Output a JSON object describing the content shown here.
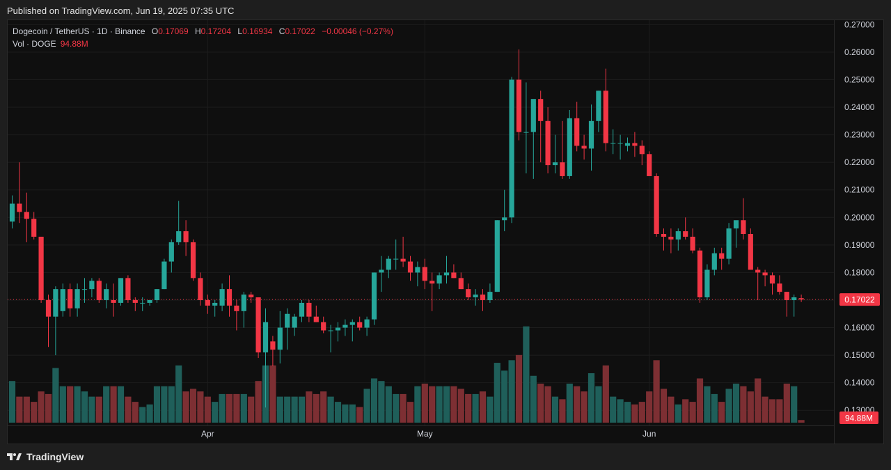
{
  "header": {
    "published": "Published on TradingView.com, Jun 19, 2025 07:35 UTC"
  },
  "legend": {
    "symbol": "Dogecoin / TetherUS · 1D · Binance",
    "o_label": "O",
    "o": "0.17069",
    "h_label": "H",
    "h": "0.17204",
    "l_label": "L",
    "l": "0.16934",
    "c_label": "C",
    "c": "0.17022",
    "change": "−0.00046 (−0.27%)",
    "vol_label": "Vol · DOGE",
    "vol": "94.88M"
  },
  "footer": {
    "brand": "TradingView",
    "logo_icon": "tradingview-logo-icon"
  },
  "colors": {
    "up": "#26a69a",
    "down": "#f23645",
    "grid": "#1c1c1c",
    "bg": "#0f0f0f"
  },
  "chart_data": {
    "type": "candlestick",
    "y_axis_ticks": [
      "0.27000",
      "0.26000",
      "0.25000",
      "0.24000",
      "0.23000",
      "0.22000",
      "0.21000",
      "0.20000",
      "0.19000",
      "0.18000",
      "0.17000",
      "0.16000",
      "0.15000",
      "0.14000",
      "0.13000"
    ],
    "ylim": [
      0.1245,
      0.2716
    ],
    "x_axis_labels": [
      {
        "label": "Apr",
        "index": 27
      },
      {
        "label": "May",
        "index": 57
      },
      {
        "label": "Jun",
        "index": 88
      }
    ],
    "last_price_label": "0.17022",
    "last_price": 0.17022,
    "volume_label": "94.88M",
    "volume_max": 38,
    "candles": [
      [
        0.1985,
        0.208,
        0.196,
        0.205,
        16
      ],
      [
        0.205,
        0.22,
        0.198,
        0.202,
        10
      ],
      [
        0.202,
        0.209,
        0.191,
        0.1995,
        10
      ],
      [
        0.1995,
        0.202,
        0.192,
        0.193,
        8
      ],
      [
        0.193,
        0.193,
        0.169,
        0.17,
        12
      ],
      [
        0.17,
        0.172,
        0.153,
        0.164,
        11
      ],
      [
        0.164,
        0.175,
        0.15,
        0.174,
        21
      ],
      [
        0.166,
        0.176,
        0.164,
        0.174,
        14
      ],
      [
        0.174,
        0.176,
        0.164,
        0.167,
        14
      ],
      [
        0.167,
        0.176,
        0.164,
        0.174,
        14
      ],
      [
        0.174,
        0.178,
        0.169,
        0.174,
        12
      ],
      [
        0.174,
        0.178,
        0.171,
        0.177,
        10
      ],
      [
        0.177,
        0.178,
        0.169,
        0.17,
        10
      ],
      [
        0.17,
        0.176,
        0.167,
        0.174,
        14
      ],
      [
        0.17,
        0.176,
        0.164,
        0.169,
        14
      ],
      [
        0.169,
        0.178,
        0.168,
        0.178,
        14
      ],
      [
        0.178,
        0.179,
        0.169,
        0.17,
        10
      ],
      [
        0.17,
        0.171,
        0.166,
        0.169,
        8
      ],
      [
        0.169,
        0.171,
        0.166,
        0.169,
        6
      ],
      [
        0.169,
        0.17,
        0.168,
        0.17,
        7
      ],
      [
        0.17,
        0.174,
        0.169,
        0.174,
        14
      ],
      [
        0.174,
        0.185,
        0.174,
        0.184,
        14
      ],
      [
        0.184,
        0.192,
        0.18,
        0.191,
        14
      ],
      [
        0.191,
        0.206,
        0.19,
        0.195,
        22
      ],
      [
        0.195,
        0.199,
        0.186,
        0.191,
        12
      ],
      [
        0.191,
        0.192,
        0.177,
        0.178,
        13
      ],
      [
        0.178,
        0.18,
        0.168,
        0.17,
        12
      ],
      [
        0.17,
        0.172,
        0.165,
        0.168,
        10
      ],
      [
        0.168,
        0.17,
        0.164,
        0.169,
        8
      ],
      [
        0.168,
        0.176,
        0.166,
        0.174,
        11
      ],
      [
        0.174,
        0.179,
        0.164,
        0.168,
        11
      ],
      [
        0.168,
        0.17,
        0.159,
        0.166,
        11
      ],
      [
        0.166,
        0.173,
        0.16,
        0.172,
        11
      ],
      [
        0.172,
        0.173,
        0.169,
        0.171,
        10
      ],
      [
        0.171,
        0.171,
        0.149,
        0.151,
        16
      ],
      [
        0.151,
        0.167,
        0.131,
        0.162,
        22
      ],
      [
        0.155,
        0.157,
        0.146,
        0.152,
        22
      ],
      [
        0.152,
        0.166,
        0.147,
        0.16,
        10
      ],
      [
        0.16,
        0.167,
        0.152,
        0.165,
        10
      ],
      [
        0.16,
        0.165,
        0.157,
        0.164,
        10
      ],
      [
        0.164,
        0.17,
        0.162,
        0.169,
        10
      ],
      [
        0.169,
        0.17,
        0.162,
        0.164,
        12
      ],
      [
        0.164,
        0.168,
        0.162,
        0.162,
        11
      ],
      [
        0.162,
        0.164,
        0.158,
        0.159,
        12
      ],
      [
        0.159,
        0.161,
        0.151,
        0.159,
        10
      ],
      [
        0.159,
        0.162,
        0.155,
        0.16,
        8
      ],
      [
        0.16,
        0.163,
        0.157,
        0.161,
        7
      ],
      [
        0.161,
        0.163,
        0.155,
        0.162,
        7
      ],
      [
        0.162,
        0.164,
        0.159,
        0.16,
        6
      ],
      [
        0.16,
        0.164,
        0.157,
        0.163,
        13
      ],
      [
        0.163,
        0.18,
        0.161,
        0.18,
        17
      ],
      [
        0.18,
        0.186,
        0.173,
        0.181,
        16
      ],
      [
        0.181,
        0.186,
        0.178,
        0.185,
        14
      ],
      [
        0.185,
        0.192,
        0.181,
        0.185,
        11
      ],
      [
        0.185,
        0.193,
        0.182,
        0.184,
        11
      ],
      [
        0.184,
        0.186,
        0.177,
        0.18,
        8
      ],
      [
        0.18,
        0.184,
        0.175,
        0.182,
        14
      ],
      [
        0.182,
        0.185,
        0.174,
        0.177,
        15
      ],
      [
        0.177,
        0.18,
        0.166,
        0.176,
        14
      ],
      [
        0.176,
        0.18,
        0.174,
        0.179,
        14
      ],
      [
        0.179,
        0.186,
        0.176,
        0.18,
        14
      ],
      [
        0.18,
        0.183,
        0.178,
        0.178,
        14
      ],
      [
        0.178,
        0.18,
        0.174,
        0.174,
        13
      ],
      [
        0.174,
        0.176,
        0.17,
        0.171,
        11
      ],
      [
        0.171,
        0.174,
        0.168,
        0.172,
        11
      ],
      [
        0.172,
        0.174,
        0.166,
        0.17,
        12
      ],
      [
        0.17,
        0.176,
        0.169,
        0.173,
        10
      ],
      [
        0.173,
        0.199,
        0.173,
        0.199,
        23
      ],
      [
        0.199,
        0.21,
        0.195,
        0.2,
        20
      ],
      [
        0.2,
        0.251,
        0.198,
        0.25,
        24
      ],
      [
        0.25,
        0.261,
        0.228,
        0.231,
        26
      ],
      [
        0.231,
        0.249,
        0.216,
        0.231,
        37
      ],
      [
        0.231,
        0.242,
        0.214,
        0.243,
        18
      ],
      [
        0.243,
        0.246,
        0.22,
        0.235,
        15
      ],
      [
        0.235,
        0.24,
        0.216,
        0.219,
        14
      ],
      [
        0.219,
        0.23,
        0.216,
        0.22,
        10
      ],
      [
        0.22,
        0.235,
        0.214,
        0.215,
        9
      ],
      [
        0.215,
        0.239,
        0.214,
        0.236,
        15
      ],
      [
        0.236,
        0.242,
        0.224,
        0.226,
        14
      ],
      [
        0.226,
        0.23,
        0.221,
        0.225,
        12
      ],
      [
        0.225,
        0.241,
        0.217,
        0.235,
        19
      ],
      [
        0.235,
        0.246,
        0.231,
        0.246,
        14
      ],
      [
        0.246,
        0.254,
        0.224,
        0.227,
        22
      ],
      [
        0.227,
        0.232,
        0.223,
        0.227,
        10
      ],
      [
        0.227,
        0.23,
        0.221,
        0.227,
        9
      ],
      [
        0.226,
        0.229,
        0.224,
        0.227,
        8
      ],
      [
        0.227,
        0.231,
        0.222,
        0.226,
        7
      ],
      [
        0.226,
        0.228,
        0.219,
        0.223,
        8
      ],
      [
        0.223,
        0.224,
        0.215,
        0.215,
        12
      ],
      [
        0.215,
        0.216,
        0.193,
        0.194,
        24
      ],
      [
        0.194,
        0.196,
        0.188,
        0.193,
        13
      ],
      [
        0.193,
        0.196,
        0.187,
        0.192,
        10
      ],
      [
        0.192,
        0.196,
        0.188,
        0.195,
        7
      ],
      [
        0.195,
        0.2,
        0.192,
        0.193,
        9
      ],
      [
        0.193,
        0.196,
        0.187,
        0.188,
        8
      ],
      [
        0.188,
        0.189,
        0.169,
        0.171,
        17
      ],
      [
        0.171,
        0.183,
        0.17,
        0.181,
        14
      ],
      [
        0.181,
        0.189,
        0.179,
        0.187,
        11
      ],
      [
        0.187,
        0.189,
        0.181,
        0.185,
        8
      ],
      [
        0.185,
        0.198,
        0.183,
        0.196,
        13
      ],
      [
        0.196,
        0.198,
        0.189,
        0.199,
        15
      ],
      [
        0.199,
        0.207,
        0.192,
        0.194,
        14
      ],
      [
        0.194,
        0.196,
        0.181,
        0.181,
        12
      ],
      [
        0.181,
        0.182,
        0.17,
        0.18,
        17
      ],
      [
        0.18,
        0.181,
        0.175,
        0.179,
        10
      ],
      [
        0.179,
        0.18,
        0.172,
        0.176,
        9
      ],
      [
        0.176,
        0.179,
        0.172,
        0.173,
        9
      ],
      [
        0.173,
        0.173,
        0.164,
        0.17,
        15
      ],
      [
        0.17,
        0.172,
        0.164,
        0.171,
        14
      ],
      [
        0.1707,
        0.172,
        0.1693,
        0.1702,
        1
      ]
    ]
  }
}
